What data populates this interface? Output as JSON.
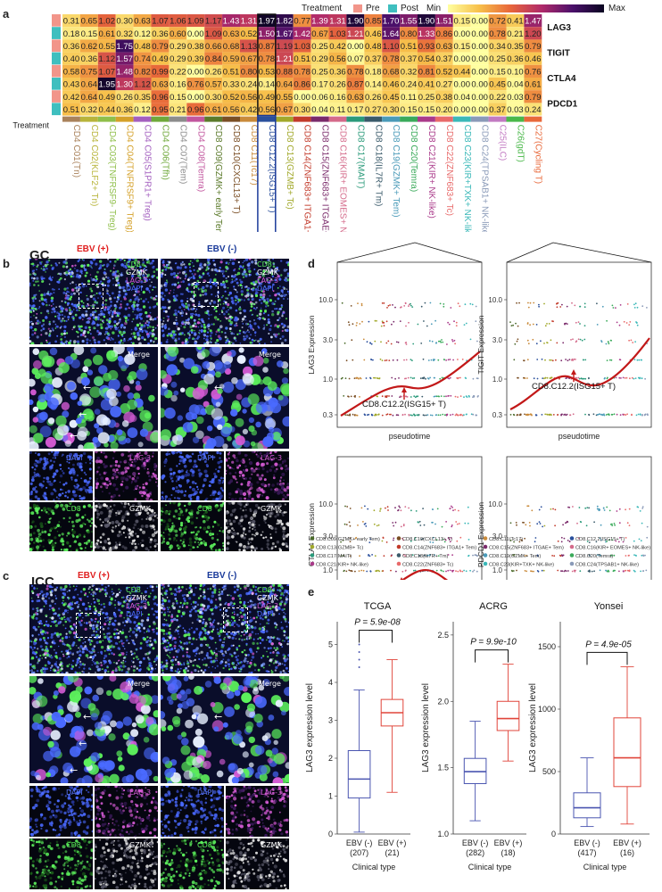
{
  "panel_letters": {
    "a": "a",
    "b": "b",
    "c": "c",
    "d": "d",
    "e": "e"
  },
  "legend": {
    "treatment_title": "Treatment",
    "pre_label": "Pre",
    "post_label": "Post",
    "min_label": "Min",
    "max_label": "Max",
    "colors": {
      "pre": "#f2958a",
      "post": "#3fbfbf"
    }
  },
  "heatmap": {
    "row_axis_label": "Treatment",
    "genes": [
      "LAG3",
      "TIGIT",
      "CTLA4",
      "PDCD1"
    ],
    "columns": [
      {
        "label": "CD4 C01(Tn)",
        "color": "#a9825b"
      },
      {
        "label": "CD4 C02(KLF2+ Tn)",
        "color": "#b8b43a"
      },
      {
        "label": "CD4 C03(TNFRSF9- Treg)",
        "color": "#8fbf4a"
      },
      {
        "label": "CD4 C04(TNFRSF9+ Treg)",
        "color": "#d4a028"
      },
      {
        "label": "CD4 C05(S1PR1+ Treg)",
        "color": "#a35fbf"
      },
      {
        "label": "CD4 C06(Tfh)",
        "color": "#6fa83a"
      },
      {
        "label": "CD4 C07(Tem)",
        "color": "#8c8c8c"
      },
      {
        "label": "CD4 C08(Temra)",
        "color": "#c2569e"
      },
      {
        "label": "CD8 C09(GZMK+ early Tem)",
        "color": "#5b7a2a"
      },
      {
        "label": "CD8 C10(CXCL13+ T)",
        "color": "#7a4e24"
      },
      {
        "label": "CD8 C11(Tc17)",
        "color": "#c98a3a"
      },
      {
        "label": "CD8 C12.2(ISG15+ T)",
        "color": "#2a4f9c"
      },
      {
        "label": "CD8 C13(GZMB+ Tc)",
        "color": "#a1a82a"
      },
      {
        "label": "CD8 C14(ZNF683+ ITGA1+ Tem)",
        "color": "#c23a2a"
      },
      {
        "label": "CD8 C15(ZNF683+ ITGAE+ Tem)",
        "color": "#7a2a6a"
      },
      {
        "label": "CD8 C16(KIR+ EOMES+ NK-like)",
        "color": "#d46a8a"
      },
      {
        "label": "CD8 C17(MAIT)",
        "color": "#2a9a7a"
      },
      {
        "label": "CD8 C18(IL7R+ Tm)",
        "color": "#3a5a6a"
      },
      {
        "label": "CD8 C19(GZMK+ Tem)",
        "color": "#4a9ab8"
      },
      {
        "label": "CD8 C20(Temra)",
        "color": "#3aaa5a"
      },
      {
        "label": "CD8 C21(KIR+ NK-like)",
        "color": "#aa3a8a"
      },
      {
        "label": "CD8 C22(ZNF683+ Tc)",
        "color": "#e86a6a"
      },
      {
        "label": "CD8 C23(KIR+TXK+ NK-like)",
        "color": "#3ab8b8"
      },
      {
        "label": "CD8 C24(TPSAB1+ NK-like)",
        "color": "#8a9ab8"
      },
      {
        "label": "C25(ILC)",
        "color": "#c27ac2"
      },
      {
        "label": "C26(gdT)",
        "color": "#4ab84a"
      },
      {
        "label": "C27(Cycling T)",
        "color": "#e8683a"
      }
    ],
    "rows": [
      {
        "gene": "LAG3",
        "treatment": "Pre",
        "values": [
          "0.31",
          "0.65",
          "1.02",
          "0.30",
          "0.63",
          "1.07",
          "1.06",
          "1.09",
          "1.17",
          "1.43",
          "1.31",
          "1.97",
          "1.82",
          "0.77",
          "1.39",
          "1.31",
          "1.90",
          "0.85",
          "1.70",
          "1.55",
          "1.90",
          "1.51",
          "0.15",
          "0.00",
          "0.72",
          "0.41",
          "1.47"
        ]
      },
      {
        "gene": "LAG3",
        "treatment": "Post",
        "values": [
          "0.18",
          "0.15",
          "0.61",
          "0.32",
          "0.12",
          "0.36",
          "0.60",
          "0.00",
          "1.09",
          "0.63",
          "0.52",
          "1.50",
          "1.67",
          "1.42",
          "0.67",
          "1.03",
          "1.21",
          "0.46",
          "1.64",
          "0.80",
          "1.33",
          "0.86",
          "0.00",
          "0.00",
          "0.78",
          "0.21",
          "1.20"
        ]
      },
      {
        "gene": "TIGIT",
        "treatment": "Pre",
        "values": [
          "0.36",
          "0.62",
          "0.55",
          "1.75",
          "0.48",
          "0.79",
          "0.29",
          "0.38",
          "0.66",
          "0.68",
          "1.13",
          "0.87",
          "1.19",
          "1.03",
          "0.25",
          "0.42",
          "0.00",
          "0.48",
          "1.10",
          "0.51",
          "0.93",
          "0.63",
          "0.15",
          "0.00",
          "0.34",
          "0.35",
          "0.79"
        ]
      },
      {
        "gene": "TIGIT",
        "treatment": "Post",
        "values": [
          "0.40",
          "0.36",
          "1.12",
          "1.57",
          "0.74",
          "0.49",
          "0.29",
          "0.39",
          "0.84",
          "0.59",
          "0.67",
          "0.78",
          "1.21",
          "0.51",
          "0.29",
          "0.56",
          "0.07",
          "0.37",
          "0.78",
          "0.37",
          "0.54",
          "0.37",
          "0.00",
          "0.00",
          "0.25",
          "0.36",
          "0.46"
        ]
      },
      {
        "gene": "CTLA4",
        "treatment": "Pre",
        "values": [
          "0.58",
          "0.75",
          "1.07",
          "1.48",
          "0.82",
          "0.99",
          "0.22",
          "0.00",
          "0.26",
          "0.51",
          "0.80",
          "0.53",
          "0.88",
          "0.78",
          "0.25",
          "0.36",
          "0.78",
          "0.18",
          "0.68",
          "0.32",
          "0.81",
          "0.52",
          "0.44",
          "0.00",
          "0.15",
          "0.10",
          "0.76"
        ]
      },
      {
        "gene": "CTLA4",
        "treatment": "Post",
        "values": [
          "0.43",
          "0.64",
          "1.95",
          "1.30",
          "1.12",
          "0.63",
          "0.16",
          "0.76",
          "0.57",
          "0.33",
          "0.24",
          "0.14",
          "0.64",
          "0.86",
          "0.17",
          "0.26",
          "0.87",
          "0.14",
          "0.46",
          "0.24",
          "0.41",
          "0.27",
          "0.00",
          "0.00",
          "0.45",
          "0.04",
          "0.61"
        ]
      },
      {
        "gene": "PDCD1",
        "treatment": "Pre",
        "values": [
          "0.42",
          "0.64",
          "0.49",
          "0.26",
          "0.35",
          "0.96",
          "0.15",
          "0.00",
          "0.30",
          "0.52",
          "0.56",
          "0.49",
          "0.55",
          "0.00",
          "0.06",
          "0.16",
          "0.63",
          "0.26",
          "0.45",
          "0.11",
          "0.25",
          "0.38",
          "0.04",
          "0.00",
          "0.22",
          "0.03",
          "0.79"
        ]
      },
      {
        "gene": "PDCD1",
        "treatment": "Post",
        "values": [
          "0.51",
          "0.32",
          "0.44",
          "0.36",
          "0.12",
          "0.95",
          "0.21",
          "0.96",
          "0.61",
          "0.56",
          "0.42",
          "0.56",
          "0.67",
          "0.30",
          "0.04",
          "0.11",
          "0.17",
          "0.27",
          "0.30",
          "0.15",
          "0.15",
          "0.20",
          "0.00",
          "0.00",
          "0.37",
          "0.03",
          "0.24"
        ]
      }
    ]
  },
  "panel_b": {
    "tissue": "GC",
    "ebv_pos": "EBV (+)",
    "ebv_neg": "EBV (-)",
    "channels": [
      "CD8",
      "GZMK",
      "LAG-3",
      "DAPI"
    ],
    "merge": "Merge",
    "split": {
      "dapi": "DAPI",
      "lag3": "LAG-3",
      "cd8": "CD8",
      "gzmk": "GZMK"
    },
    "channel_colors": {
      "cd8": "#5cf05c",
      "gzmk": "#ffffff",
      "lag3": "#d65cd6",
      "dapi": "#4a6aff"
    }
  },
  "panel_c": {
    "tissue": "ICC",
    "ebv_pos": "EBV (+)",
    "ebv_neg": "EBV (-)",
    "channels": [
      "CD8",
      "GZMK",
      "LAG-3",
      "DAPI"
    ],
    "merge": "Merge",
    "split": {
      "dapi": "DAPI",
      "lag3": "LAG-3",
      "cd8": "CD8",
      "gzmk": "GZMK"
    }
  },
  "panel_d": {
    "xlabel": "pseudotime",
    "annotation": "CD8.C12.2(ISG15+ T)",
    "yticks": [
      "0.3",
      "1.0",
      "3.0",
      "10.0"
    ],
    "plots": [
      {
        "ylabel": "LAG3 Expression"
      },
      {
        "ylabel": "TIGIT Expression"
      },
      {
        "ylabel": "CTLA4 Expression"
      },
      {
        "ylabel": "PDCD1 Expression"
      }
    ],
    "legend": [
      {
        "label": "CD8.C09(GZMK+ early Tem)",
        "color": "#4a6a2a"
      },
      {
        "label": "CD8.C10(CXCL13+ T)",
        "color": "#7a4e24"
      },
      {
        "label": "CD8.C11(Tc17)",
        "color": "#c98a3a"
      },
      {
        "label": "CD8.C12.2(ISG15+ T)",
        "color": "#2a4f9c"
      },
      {
        "label": "CD8.C13(GZMB+ Tc)",
        "color": "#a1a82a"
      },
      {
        "label": "CD8.C14(ZNF683+ ITGA1+ Tem)",
        "color": "#c23a2a"
      },
      {
        "label": "CD8.C15(ZNF683+ ITGAE+ Tem)",
        "color": "#7a2a6a"
      },
      {
        "label": "CD8.C16(KIR+ EOMES+ NK-like)",
        "color": "#d46a8a"
      },
      {
        "label": "CD8.C17(MAIT)",
        "color": "#2a9a7a"
      },
      {
        "label": "CD8.C18(IL7R+ Tm)",
        "color": "#3a5a6a"
      },
      {
        "label": "CD8.C19(GZMK+ Tem)",
        "color": "#4a9ab8"
      },
      {
        "label": "CD8.C20(Temra)",
        "color": "#3aaa5a"
      },
      {
        "label": "CD8.C21(KIR+ NK-like)",
        "color": "#aa3a8a"
      },
      {
        "label": "CD8.C22(ZNF683+ Tc)",
        "color": "#e86a6a"
      },
      {
        "label": "CD8.C23(KIR+TXK+ NK-like)",
        "color": "#3ab8b8"
      },
      {
        "label": "CD8.C24(TPSAB1+ NK-like)",
        "color": "#8a9ab8"
      }
    ]
  },
  "chart_data": [
    {
      "type": "box",
      "title": "TCGA",
      "pvalue": "P = 5.9e-08",
      "xlabel": "Clinical type",
      "ylabel": "LAG3 expression level",
      "ylim": [
        0,
        5.6
      ],
      "yticks": [
        "0",
        "1",
        "2",
        "3",
        "4",
        "5"
      ],
      "categories": [
        "EBV (-)",
        "EBV (+)"
      ],
      "counts": [
        "(207)",
        "(21)"
      ],
      "colors": [
        "#4a55b0",
        "#e0453a"
      ],
      "boxes": [
        {
          "min": 0.05,
          "q1": 0.95,
          "median": 1.45,
          "q3": 2.2,
          "max": 3.8,
          "outliers": [
            4.4,
            4.6,
            4.8,
            5.0
          ]
        },
        {
          "min": 1.1,
          "q1": 2.85,
          "median": 3.2,
          "q3": 3.55,
          "max": 4.6,
          "outliers": []
        }
      ]
    },
    {
      "type": "box",
      "title": "ACRG",
      "pvalue": "P = 9.9e-10",
      "xlabel": "Clinical type",
      "ylabel": "LAG3 expression level",
      "ylim": [
        1.0,
        2.6
      ],
      "yticks": [
        "1.0",
        "1.5",
        "2.0",
        "2.5"
      ],
      "categories": [
        "EBV (-)",
        "EBV (+)"
      ],
      "counts": [
        "(282)",
        "(18)"
      ],
      "colors": [
        "#4a55b0",
        "#e0453a"
      ],
      "boxes": [
        {
          "min": 1.1,
          "q1": 1.38,
          "median": 1.47,
          "q3": 1.57,
          "max": 1.85,
          "outliers": []
        },
        {
          "min": 1.55,
          "q1": 1.78,
          "median": 1.87,
          "q3": 2.0,
          "max": 2.28,
          "outliers": []
        }
      ]
    },
    {
      "type": "box",
      "title": "Yonsei",
      "pvalue": "P = 4.9e-05",
      "xlabel": "Clinical type",
      "ylabel": "LAG3 expression level",
      "ylim": [
        0,
        1700
      ],
      "yticks": [
        "0",
        "500",
        "1000",
        "1500"
      ],
      "categories": [
        "EBV (-)",
        "EBV (+)"
      ],
      "counts": [
        "(417)",
        "(16)"
      ],
      "colors": [
        "#4a55b0",
        "#e0453a"
      ],
      "boxes": [
        {
          "min": 60,
          "q1": 130,
          "median": 210,
          "q3": 330,
          "max": 610,
          "outliers": []
        },
        {
          "min": 80,
          "q1": 380,
          "median": 610,
          "q3": 930,
          "max": 1340,
          "outliers": []
        }
      ]
    }
  ]
}
